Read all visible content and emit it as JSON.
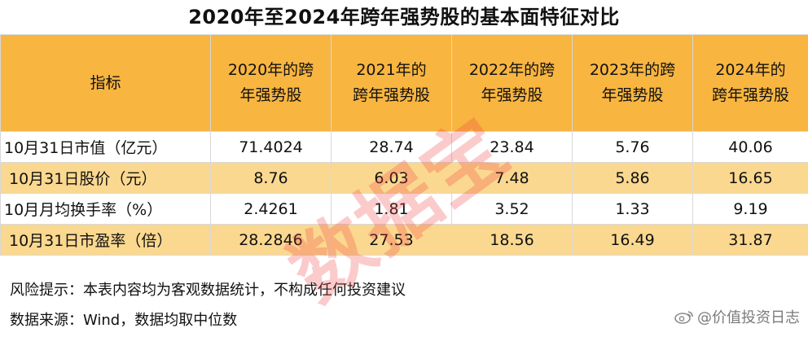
{
  "title": "2020年至2024年跨年强势股的基本面特征对比",
  "table": {
    "header": {
      "indicator": "指标",
      "columns": [
        {
          "line1": "2020年的跨",
          "line2": "年强势股"
        },
        {
          "line1": "2021年的",
          "line2": "跨年强势股"
        },
        {
          "line1": "2022年的跨",
          "line2": "年强势股"
        },
        {
          "line1": "2023年的跨",
          "line2": "年强势股"
        },
        {
          "line1": "2024年的",
          "line2": "跨年强势股"
        }
      ]
    },
    "rows": [
      {
        "label": "10月31日市值（亿元）",
        "values": [
          "71.4024",
          "28.74",
          "23.84",
          "5.76",
          "40.06"
        ]
      },
      {
        "label": "10月31日股价（元）",
        "values": [
          "8.76",
          "6.03",
          "7.48",
          "5.86",
          "16.65"
        ]
      },
      {
        "label": "10月月均换手率（%）",
        "values": [
          "2.4261",
          "1.81",
          "3.52",
          "1.33",
          "9.19"
        ]
      },
      {
        "label": "10月31日市盈率（倍）",
        "values": [
          "28.2846",
          "27.53",
          "18.56",
          "16.49",
          "31.87"
        ]
      }
    ]
  },
  "notes": {
    "risk": "风险提示：本表内容均为客观数据统计，不构成任何投资建议",
    "source": "数据来源：Wind，数据均取中位数"
  },
  "stamp_text": "数据宝",
  "weibo_watermark": "@价值投资日志",
  "colors": {
    "header_bg": "#f8b540",
    "highlight_row_bg": "#fbd88f",
    "stamp": "#f04646"
  }
}
